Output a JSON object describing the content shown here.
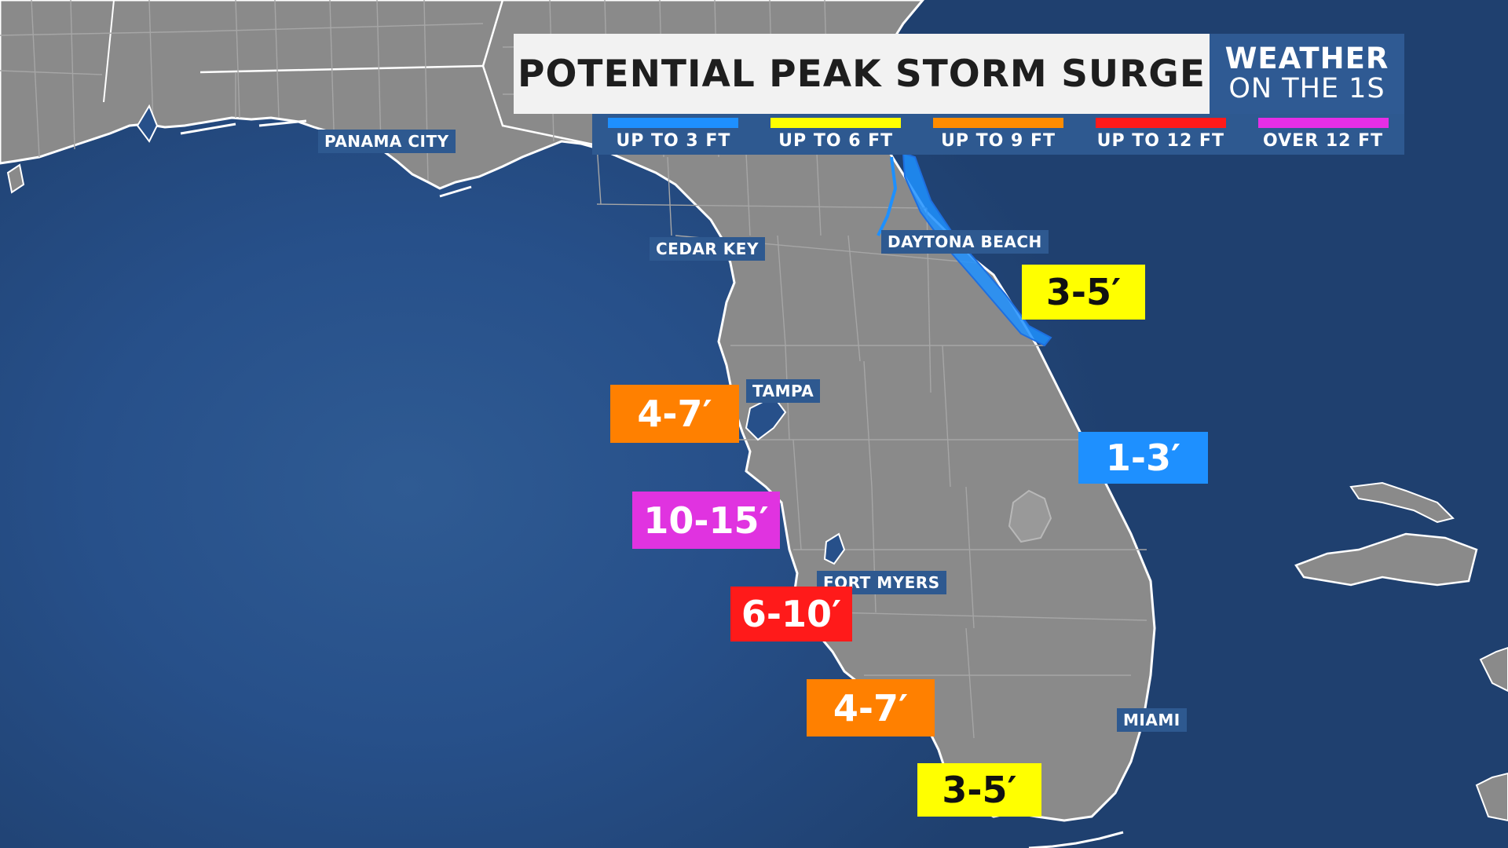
{
  "title": "POTENTIAL PEAK STORM SURGE",
  "brand": {
    "line1": "WEATHER",
    "line2": "ON THE 1S"
  },
  "legend": [
    {
      "label": "UP TO 3 FT",
      "color": "#1e90ff"
    },
    {
      "label": "UP TO 6 FT",
      "color": "#ffff00"
    },
    {
      "label": "UP TO 9 FT",
      "color": "#ff8c00"
    },
    {
      "label": "UP TO 12 FT",
      "color": "#ff1a1a"
    },
    {
      "label": "OVER 12 FT",
      "color": "#e62ee6"
    }
  ],
  "cities": {
    "panama_city": "PANAMA CITY",
    "cedar_key": "CEDAR KEY",
    "daytona_beach": "DAYTONA BEACH",
    "tampa": "TAMPA",
    "fort_myers": "FORT MYERS",
    "miami": "MIAMI"
  },
  "surge_zones": {
    "daytona": {
      "value": "3-5′",
      "bg": "#ffff00",
      "fg": "#111111"
    },
    "tampa": {
      "value": "4-7′",
      "bg": "#ff8000",
      "fg": "#ffffff"
    },
    "east_coast": {
      "value": "1-3′",
      "bg": "#1e90ff",
      "fg": "#ffffff"
    },
    "sarasota": {
      "value": "10-15′",
      "bg": "#e033e0",
      "fg": "#ffffff"
    },
    "fort_myers": {
      "value": "6-10′",
      "bg": "#ff1a1a",
      "fg": "#ffffff"
    },
    "naples": {
      "value": "4-7′",
      "bg": "#ff8000",
      "fg": "#ffffff"
    },
    "keys": {
      "value": "3-5′",
      "bg": "#ffff00",
      "fg": "#111111"
    }
  },
  "colors": {
    "land": "#8a8a8a",
    "water": "#27508a",
    "coast": "#ffffff",
    "surge_line": "#1e90ff"
  }
}
